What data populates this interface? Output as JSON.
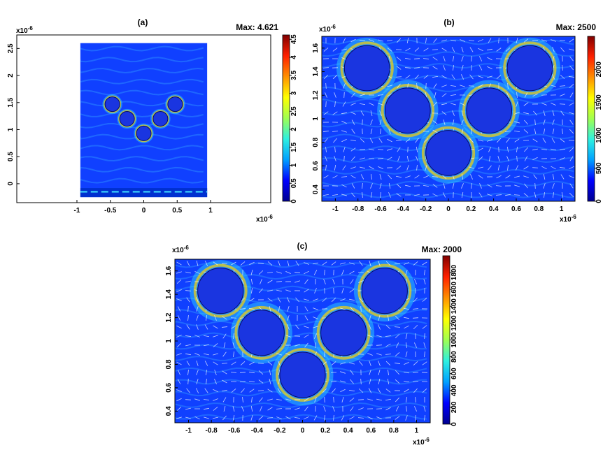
{
  "chart_data": [
    {
      "type": "heatmap",
      "panel_label": "(a)",
      "max_label": "Max: 4.621",
      "x_ticks": [
        -1,
        -0.5,
        0,
        0.5,
        1
      ],
      "x_tick_labels": [
        "-1",
        "-0.5",
        "0",
        "0.5",
        "1"
      ],
      "x_exponent": "x10",
      "x_exponent_power": "-6",
      "xlim": [
        -1.9,
        1.9
      ],
      "y_ticks": [
        0,
        0.5,
        1,
        1.5,
        2,
        2.5
      ],
      "y_tick_labels": [
        "0",
        "0.5",
        "1",
        "1.5",
        "2",
        "2.5"
      ],
      "y_exponent": "x10",
      "y_exponent_power": "-6",
      "ylim": [
        -0.35,
        2.75
      ],
      "colorbar_ticks": [
        0,
        0.5,
        1,
        1.5,
        2,
        2.5,
        3,
        3.5,
        4,
        4.5
      ],
      "colorbar_tick_labels": [
        "0",
        "0.5",
        "1",
        "1.5",
        "2",
        "2.5",
        "3",
        "3.5",
        "4",
        "4.5"
      ],
      "colorbar_range": [
        0,
        4.621
      ],
      "colormap": [
        "#00008f",
        "#0000ff",
        "#00a0ff",
        "#2ef0e0",
        "#a0ff50",
        "#ffff00",
        "#ff9000",
        "#ff2000",
        "#800000"
      ],
      "field_region": {
        "x": [
          -0.95,
          0.95
        ],
        "y": [
          -0.25,
          2.6
        ]
      },
      "cylinders": [
        {
          "x": -0.47,
          "y": 1.47,
          "r": 0.11
        },
        {
          "x": 0.47,
          "y": 1.47,
          "r": 0.11
        },
        {
          "x": -0.25,
          "y": 1.2,
          "r": 0.11
        },
        {
          "x": 0.25,
          "y": 1.2,
          "r": 0.11
        },
        {
          "x": 0.0,
          "y": 0.93,
          "r": 0.11
        }
      ],
      "grid": false
    },
    {
      "type": "heatmap",
      "panel_label": "(b)",
      "max_label": "Max: 2500",
      "x_ticks": [
        -1,
        -0.8,
        -0.6,
        -0.4,
        -0.2,
        0,
        0.2,
        0.4,
        0.6,
        0.8,
        1
      ],
      "x_tick_labels": [
        "-1",
        "-0.8",
        "-0.6",
        "-0.4",
        "-0.2",
        "0",
        "0.2",
        "0.4",
        "0.6",
        "0.8",
        "1"
      ],
      "x_exponent": "x10",
      "x_exponent_power": "-6",
      "xlim": [
        -1.12,
        1.12
      ],
      "y_ticks": [
        0.4,
        0.6,
        0.8,
        1,
        1.2,
        1.4,
        1.6
      ],
      "y_tick_labels": [
        "0.4",
        "0.6",
        "0.8",
        "1",
        "1.2",
        "1.4",
        "1.6"
      ],
      "y_exponent": "x10",
      "y_exponent_power": "-6",
      "ylim": [
        0.3,
        1.7
      ],
      "colorbar_ticks": [
        0,
        500,
        1000,
        1500,
        2000
      ],
      "colorbar_tick_labels": [
        "0",
        "500",
        "1000",
        "1500",
        "2000"
      ],
      "colorbar_range": [
        0,
        2500
      ],
      "colormap": [
        "#00008f",
        "#0000ff",
        "#00a0ff",
        "#2ef0e0",
        "#a0ff50",
        "#ffff00",
        "#ff9000",
        "#ff2000",
        "#800000"
      ],
      "cylinders": [
        {
          "x": -0.72,
          "y": 1.43,
          "r": 0.2
        },
        {
          "x": 0.72,
          "y": 1.43,
          "r": 0.2
        },
        {
          "x": -0.36,
          "y": 1.07,
          "r": 0.2
        },
        {
          "x": 0.36,
          "y": 1.07,
          "r": 0.2
        },
        {
          "x": 0.0,
          "y": 0.71,
          "r": 0.2
        }
      ],
      "arrows": true,
      "grid": false
    },
    {
      "type": "heatmap",
      "panel_label": "(c)",
      "max_label": "Max: 2000",
      "x_ticks": [
        -1,
        -0.8,
        -0.6,
        -0.4,
        -0.2,
        0,
        0.2,
        0.4,
        0.6,
        0.8,
        1
      ],
      "x_tick_labels": [
        "-1",
        "-0.8",
        "-0.6",
        "-0.4",
        "-0.2",
        "0",
        "0.2",
        "0.4",
        "0.6",
        "0.8",
        "1"
      ],
      "x_exponent": "x10",
      "x_exponent_power": "-6",
      "xlim": [
        -1.12,
        1.12
      ],
      "y_ticks": [
        0.4,
        0.6,
        0.8,
        1,
        1.2,
        1.4,
        1.6
      ],
      "y_tick_labels": [
        "0.4",
        "0.6",
        "0.8",
        "1",
        "1.2",
        "1.4",
        "1.6"
      ],
      "y_exponent": "x10",
      "y_exponent_power": "-6",
      "ylim": [
        0.3,
        1.7
      ],
      "colorbar_ticks": [
        0,
        200,
        400,
        600,
        800,
        1000,
        1200,
        1400,
        1600,
        1800
      ],
      "colorbar_tick_labels": [
        "0",
        "200",
        "400",
        "600",
        "800",
        "1000",
        "1200",
        "1400",
        "1600",
        "1800"
      ],
      "colorbar_range": [
        0,
        2000
      ],
      "colormap": [
        "#00008f",
        "#0000ff",
        "#00a0ff",
        "#2ef0e0",
        "#a0ff50",
        "#ffff00",
        "#ff9000",
        "#ff2000",
        "#800000"
      ],
      "cylinders": [
        {
          "x": -0.72,
          "y": 1.43,
          "r": 0.2
        },
        {
          "x": 0.72,
          "y": 1.43,
          "r": 0.2
        },
        {
          "x": -0.36,
          "y": 1.07,
          "r": 0.2
        },
        {
          "x": 0.36,
          "y": 1.07,
          "r": 0.2
        },
        {
          "x": 0.0,
          "y": 0.71,
          "r": 0.2
        }
      ],
      "arrows": true,
      "grid": false
    }
  ]
}
